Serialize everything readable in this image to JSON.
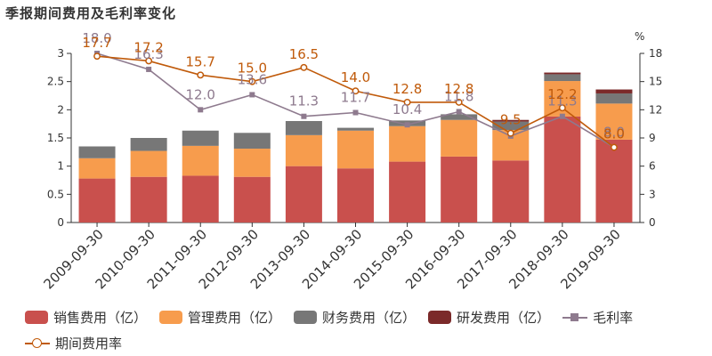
{
  "chart_data": {
    "type": "bar+line",
    "title": "季报期间费用及毛利率变化",
    "categories": [
      "2009-09-30",
      "2010-09-30",
      "2011-09-30",
      "2012-09-30",
      "2013-09-30",
      "2014-09-30",
      "2015-09-30",
      "2016-09-30",
      "2017-09-30",
      "2018-09-30",
      "2019-09-30"
    ],
    "left_axis": {
      "ticks": [
        "0",
        "0.5",
        "1",
        "1.5",
        "2",
        "2.5",
        "3"
      ],
      "ylim": [
        0,
        3
      ]
    },
    "right_axis": {
      "unit": "%",
      "ticks": [
        "0",
        "3",
        "6",
        "9",
        "12",
        "15",
        "18"
      ],
      "ylim": [
        0,
        18
      ]
    },
    "bar_series": [
      {
        "name": "销售费用（亿）",
        "color": "#c9504d",
        "values": [
          0.78,
          0.81,
          0.83,
          0.81,
          1.0,
          0.96,
          1.08,
          1.17,
          1.1,
          1.88,
          1.47
        ]
      },
      {
        "name": "管理费用（亿）",
        "color": "#f79c4d",
        "values": [
          0.36,
          0.46,
          0.53,
          0.5,
          0.55,
          0.67,
          0.63,
          0.65,
          0.54,
          0.63,
          0.64
        ]
      },
      {
        "name": "财务费用（亿）",
        "color": "#777777",
        "values": [
          0.21,
          0.23,
          0.27,
          0.28,
          0.25,
          0.05,
          0.1,
          0.1,
          0.15,
          0.12,
          0.18
        ]
      },
      {
        "name": "研发费用（亿）",
        "color": "#7b2a2a",
        "values": [
          0,
          0,
          0,
          0,
          0,
          0,
          0,
          0,
          0.03,
          0.03,
          0.07
        ]
      }
    ],
    "line_series": [
      {
        "name": "毛利率",
        "color": "#8e7a8e",
        "marker": "square",
        "values": [
          18.0,
          16.3,
          12.0,
          13.6,
          11.3,
          11.7,
          10.4,
          11.8,
          9.2,
          11.3,
          8.0
        ],
        "labels": [
          "18.0",
          "16.3",
          "12.0",
          "13.6",
          "11.3",
          "11.7",
          "10.4",
          "11.8",
          "",
          "11.3",
          "8.0"
        ]
      },
      {
        "name": "期间费用率",
        "color": "#c05a0a",
        "marker": "circle",
        "values": [
          17.7,
          17.2,
          15.7,
          15.0,
          16.5,
          14.0,
          12.8,
          12.8,
          9.5,
          12.2,
          8.0
        ],
        "labels": [
          "17.7",
          "17.2",
          "15.7",
          "15.0",
          "16.5",
          "14.0",
          "12.8",
          "12.8",
          "9.5",
          "12.2",
          "8.0"
        ]
      }
    ]
  }
}
